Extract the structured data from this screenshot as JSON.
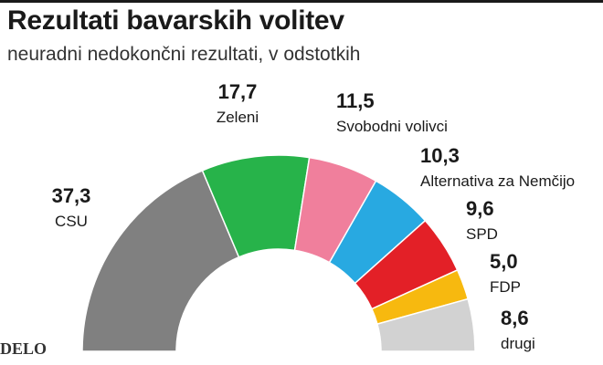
{
  "header": {
    "title": "Rezultati bavarskih volitev",
    "subtitle": "neuradni nedokončni rezultati, v odstotkih"
  },
  "logo": "DELO",
  "chart_data": {
    "type": "pie",
    "variant": "half-donut (parliament)",
    "series": [
      {
        "name": "CSU",
        "value": 37.3,
        "label": "37,3",
        "color": "#808080"
      },
      {
        "name": "Zeleni",
        "value": 17.7,
        "label": "17,7",
        "color": "#27b34a"
      },
      {
        "name": "Svobodni volivci",
        "value": 11.5,
        "label": "11,5",
        "color": "#f07f9c"
      },
      {
        "name": "Alternativa za Nemčijo",
        "value": 10.3,
        "label": "10,3",
        "color": "#28a9e1"
      },
      {
        "name": "SPD",
        "value": 9.6,
        "label": "9,6",
        "color": "#e32027"
      },
      {
        "name": "FDP",
        "value": 5.0,
        "label": "5,0",
        "color": "#f7b90f"
      },
      {
        "name": "drugi",
        "value": 8.6,
        "label": "8,6",
        "color": "#d2d2d2"
      }
    ]
  }
}
